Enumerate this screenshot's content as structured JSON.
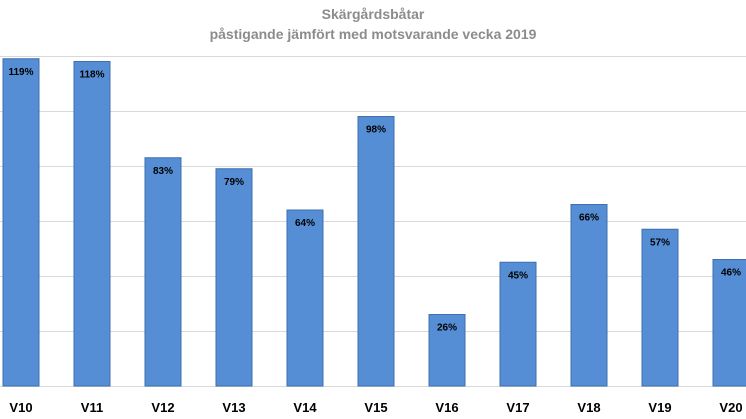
{
  "chart_data": {
    "type": "bar",
    "title": "Skärgårdsbåtar",
    "subtitle": "påstigande jämfört med motsvarande vecka 2019",
    "categories": [
      "V10",
      "V11",
      "V12",
      "V13",
      "V14",
      "V15",
      "V16",
      "V17",
      "V18",
      "V19",
      "V20"
    ],
    "values": [
      119,
      118,
      83,
      79,
      64,
      98,
      26,
      45,
      66,
      57,
      46
    ],
    "data_labels": [
      "119%",
      "118%",
      "83%",
      "79%",
      "64%",
      "98%",
      "26%",
      "45%",
      "66%",
      "57%",
      "46%"
    ],
    "ylim": [
      0,
      120
    ],
    "grid": true,
    "bar_color": "#558ed5",
    "bar_edge_color": "#3f6fae",
    "gridline_color": "#d9d9d9"
  }
}
